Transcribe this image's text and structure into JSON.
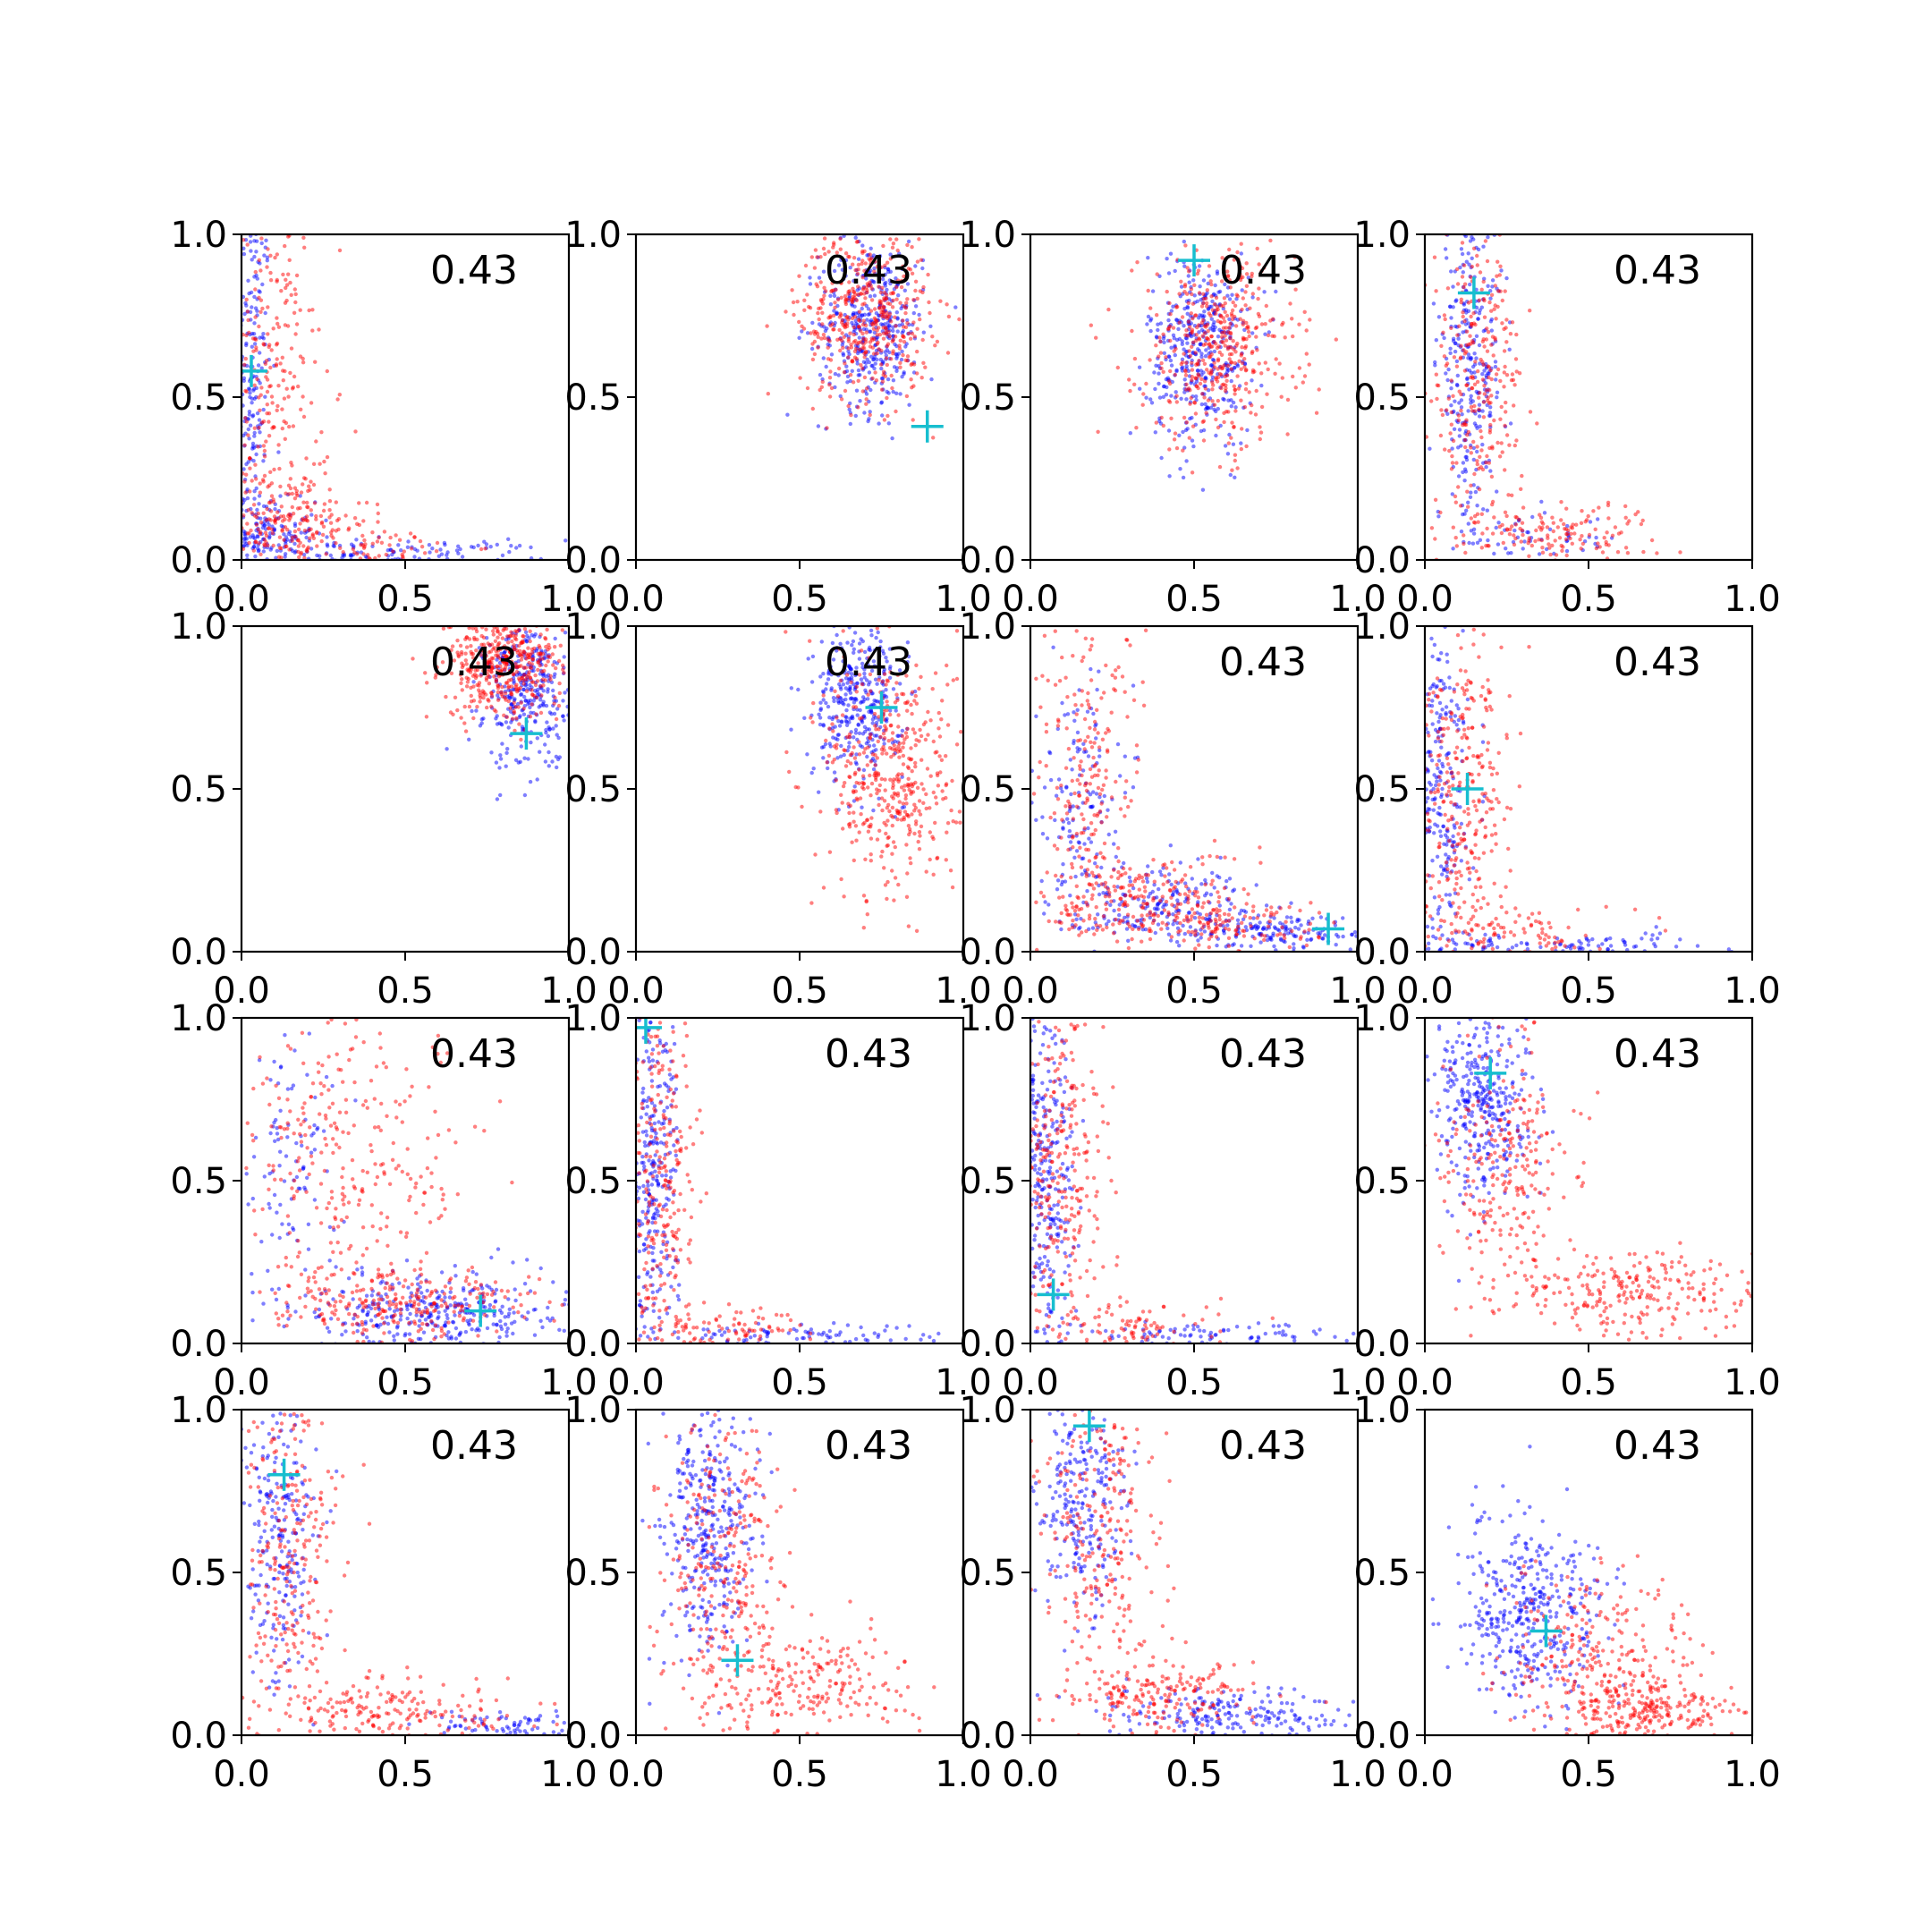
{
  "figure": {
    "rows": 4,
    "cols": 4,
    "colors": {
      "series_a": "#0000ff",
      "series_b": "#ff0000",
      "marker": "#17becf",
      "axis": "#000000"
    }
  },
  "chart_data": [
    {
      "type": "scatter",
      "annotation": "0.43",
      "xlim": [
        0,
        1
      ],
      "ylim": [
        0,
        1
      ],
      "xticks": [
        "0.0",
        "0.5",
        "1.0"
      ],
      "yticks": [
        "0.0",
        "0.5",
        "1.0"
      ],
      "marker": [
        0.03,
        0.58
      ],
      "series": [
        {
          "color": "#0000ff",
          "clusters": [
            [
              0.03,
              0.55,
              0.03,
              0.3,
              200
            ],
            [
              0.07,
              0.08,
              0.08,
              0.05,
              150
            ],
            [
              0.45,
              0.02,
              0.25,
              0.02,
              120
            ]
          ]
        },
        {
          "color": "#ff0000",
          "clusters": [
            [
              0.09,
              0.55,
              0.07,
              0.3,
              250
            ],
            [
              0.15,
              0.12,
              0.12,
              0.08,
              200
            ],
            [
              0.4,
              0.04,
              0.15,
              0.03,
              60
            ]
          ]
        }
      ]
    },
    {
      "type": "scatter",
      "annotation": "0.43",
      "xlim": [
        0,
        1
      ],
      "ylim": [
        0,
        1
      ],
      "xticks": [
        "0.0",
        "0.5",
        "1.0"
      ],
      "yticks": [
        "0.0",
        "0.5",
        "1.0"
      ],
      "marker": [
        0.89,
        0.41
      ],
      "series": [
        {
          "color": "#0000ff",
          "clusters": [
            [
              0.72,
              0.72,
              0.08,
              0.13,
              400
            ]
          ]
        },
        {
          "color": "#ff0000",
          "clusters": [
            [
              0.7,
              0.75,
              0.1,
              0.13,
              450
            ]
          ]
        }
      ]
    },
    {
      "type": "scatter",
      "annotation": "0.43",
      "xlim": [
        0,
        1
      ],
      "ylim": [
        0,
        1
      ],
      "xticks": [
        "0.0",
        "0.5",
        "1.0"
      ],
      "yticks": [
        "0.0",
        "0.5",
        "1.0"
      ],
      "marker": [
        0.5,
        0.92
      ],
      "series": [
        {
          "color": "#0000ff",
          "clusters": [
            [
              0.52,
              0.65,
              0.08,
              0.15,
              400
            ]
          ]
        },
        {
          "color": "#ff0000",
          "clusters": [
            [
              0.57,
              0.65,
              0.12,
              0.15,
              450
            ]
          ]
        }
      ]
    },
    {
      "type": "scatter",
      "annotation": "0.43",
      "xlim": [
        0,
        1
      ],
      "ylim": [
        0,
        1
      ],
      "xticks": [
        "0.0",
        "0.5",
        "1.0"
      ],
      "yticks": [
        "0.0",
        "0.5",
        "1.0"
      ],
      "marker": [
        0.15,
        0.82
      ],
      "series": [
        {
          "color": "#0000ff",
          "clusters": [
            [
              0.14,
              0.6,
              0.05,
              0.25,
              300
            ],
            [
              0.3,
              0.06,
              0.15,
              0.04,
              60
            ]
          ]
        },
        {
          "color": "#ff0000",
          "clusters": [
            [
              0.16,
              0.55,
              0.07,
              0.25,
              300
            ],
            [
              0.4,
              0.08,
              0.15,
              0.05,
              150
            ]
          ]
        }
      ]
    },
    {
      "type": "scatter",
      "annotation": "0.43",
      "xlim": [
        0,
        1
      ],
      "ylim": [
        0,
        1
      ],
      "xticks": [
        "0.0",
        "0.5",
        "1.0"
      ],
      "yticks": [
        "0.0",
        "0.5",
        "1.0"
      ],
      "marker": [
        0.87,
        0.67
      ],
      "series": [
        {
          "color": "#0000ff",
          "clusters": [
            [
              0.88,
              0.8,
              0.07,
              0.12,
              350
            ]
          ]
        },
        {
          "color": "#ff0000",
          "clusters": [
            [
              0.8,
              0.88,
              0.09,
              0.08,
              450
            ]
          ]
        }
      ]
    },
    {
      "type": "scatter",
      "annotation": "0.43",
      "xlim": [
        0,
        1
      ],
      "ylim": [
        0,
        1
      ],
      "xticks": [
        "0.0",
        "0.5",
        "1.0"
      ],
      "yticks": [
        "0.0",
        "0.5",
        "1.0"
      ],
      "marker": [
        0.75,
        0.75
      ],
      "series": [
        {
          "color": "#0000ff",
          "clusters": [
            [
              0.68,
              0.77,
              0.07,
              0.12,
              350
            ]
          ]
        },
        {
          "color": "#ff0000",
          "clusters": [
            [
              0.78,
              0.55,
              0.1,
              0.2,
              450
            ]
          ]
        }
      ]
    },
    {
      "type": "scatter",
      "annotation": "0.43",
      "xlim": [
        0,
        1
      ],
      "ylim": [
        0,
        1
      ],
      "xticks": [
        "0.0",
        "0.5",
        "1.0"
      ],
      "yticks": [
        "0.0",
        "0.5",
        "1.0"
      ],
      "marker": [
        0.91,
        0.07
      ],
      "series": [
        {
          "color": "#0000ff",
          "clusters": [
            [
              0.15,
              0.45,
              0.06,
              0.2,
              150
            ],
            [
              0.4,
              0.15,
              0.15,
              0.06,
              200
            ],
            [
              0.75,
              0.06,
              0.15,
              0.03,
              150
            ]
          ]
        },
        {
          "color": "#ff0000",
          "clusters": [
            [
              0.18,
              0.55,
              0.08,
              0.25,
              200
            ],
            [
              0.35,
              0.15,
              0.15,
              0.08,
              250
            ],
            [
              0.65,
              0.08,
              0.15,
              0.04,
              100
            ]
          ]
        }
      ]
    },
    {
      "type": "scatter",
      "annotation": "0.43",
      "xlim": [
        0,
        1
      ],
      "ylim": [
        0,
        1
      ],
      "xticks": [
        "0.0",
        "0.5",
        "1.0"
      ],
      "yticks": [
        "0.0",
        "0.5",
        "1.0"
      ],
      "marker": [
        0.13,
        0.5
      ],
      "series": [
        {
          "color": "#0000ff",
          "clusters": [
            [
              0.05,
              0.5,
              0.04,
              0.28,
              250
            ],
            [
              0.4,
              0.02,
              0.25,
              0.02,
              120
            ]
          ]
        },
        {
          "color": "#ff0000",
          "clusters": [
            [
              0.12,
              0.45,
              0.07,
              0.25,
              300
            ],
            [
              0.25,
              0.06,
              0.15,
              0.04,
              100
            ]
          ]
        }
      ]
    },
    {
      "type": "scatter",
      "annotation": "0.43",
      "xlim": [
        0,
        1
      ],
      "ylim": [
        0,
        1
      ],
      "xticks": [
        "0.0",
        "0.5",
        "1.0"
      ],
      "yticks": [
        "0.0",
        "0.5",
        "1.0"
      ],
      "marker": [
        0.73,
        0.1
      ],
      "series": [
        {
          "color": "#0000ff",
          "clusters": [
            [
              0.15,
              0.6,
              0.07,
              0.25,
              100
            ],
            [
              0.6,
              0.1,
              0.2,
              0.06,
              350
            ]
          ]
        },
        {
          "color": "#ff0000",
          "clusters": [
            [
              0.35,
              0.55,
              0.18,
              0.25,
              300
            ],
            [
              0.5,
              0.12,
              0.2,
              0.06,
              250
            ]
          ]
        }
      ]
    },
    {
      "type": "scatter",
      "annotation": "0.43",
      "xlim": [
        0,
        1
      ],
      "ylim": [
        0,
        1
      ],
      "xticks": [
        "0.0",
        "0.5",
        "1.0"
      ],
      "yticks": [
        "0.0",
        "0.5",
        "1.0"
      ],
      "marker": [
        0.03,
        0.97
      ],
      "series": [
        {
          "color": "#0000ff",
          "clusters": [
            [
              0.05,
              0.5,
              0.04,
              0.3,
              300
            ],
            [
              0.5,
              0.02,
              0.25,
              0.02,
              100
            ]
          ]
        },
        {
          "color": "#ff0000",
          "clusters": [
            [
              0.08,
              0.45,
              0.06,
              0.3,
              300
            ],
            [
              0.25,
              0.05,
              0.15,
              0.04,
              100
            ]
          ]
        }
      ]
    },
    {
      "type": "scatter",
      "annotation": "0.43",
      "xlim": [
        0,
        1
      ],
      "ylim": [
        0,
        1
      ],
      "xticks": [
        "0.0",
        "0.5",
        "1.0"
      ],
      "yticks": [
        "0.0",
        "0.5",
        "1.0"
      ],
      "marker": [
        0.07,
        0.15
      ],
      "series": [
        {
          "color": "#0000ff",
          "clusters": [
            [
              0.05,
              0.55,
              0.04,
              0.3,
              300
            ],
            [
              0.5,
              0.02,
              0.25,
              0.02,
              100
            ]
          ]
        },
        {
          "color": "#ff0000",
          "clusters": [
            [
              0.09,
              0.55,
              0.07,
              0.3,
              300
            ],
            [
              0.3,
              0.05,
              0.15,
              0.04,
              100
            ]
          ]
        }
      ]
    },
    {
      "type": "scatter",
      "annotation": "0.43",
      "xlim": [
        0,
        1
      ],
      "ylim": [
        0,
        1
      ],
      "xticks": [
        "0.0",
        "0.5",
        "1.0"
      ],
      "yticks": [
        "0.0",
        "0.5",
        "1.0"
      ],
      "marker": [
        0.2,
        0.83
      ],
      "series": [
        {
          "color": "#0000ff",
          "clusters": [
            [
              0.18,
              0.75,
              0.07,
              0.15,
              350
            ]
          ]
        },
        {
          "color": "#ff0000",
          "clusters": [
            [
              0.25,
              0.55,
              0.1,
              0.2,
              250
            ],
            [
              0.65,
              0.15,
              0.2,
              0.07,
              250
            ]
          ]
        }
      ]
    },
    {
      "type": "scatter",
      "annotation": "0.43",
      "xlim": [
        0,
        1
      ],
      "ylim": [
        0,
        1
      ],
      "xticks": [
        "0.0",
        "0.5",
        "1.0"
      ],
      "yticks": [
        "0.0",
        "0.5",
        "1.0"
      ],
      "marker": [
        0.13,
        0.8
      ],
      "series": [
        {
          "color": "#0000ff",
          "clusters": [
            [
              0.12,
              0.65,
              0.06,
              0.25,
              250
            ],
            [
              0.8,
              0.03,
              0.12,
              0.02,
              80
            ]
          ]
        },
        {
          "color": "#ff0000",
          "clusters": [
            [
              0.15,
              0.55,
              0.08,
              0.25,
              250
            ],
            [
              0.45,
              0.07,
              0.2,
              0.05,
              200
            ]
          ]
        }
      ]
    },
    {
      "type": "scatter",
      "annotation": "0.43",
      "xlim": [
        0,
        1
      ],
      "ylim": [
        0,
        1
      ],
      "xticks": [
        "0.0",
        "0.5",
        "1.0"
      ],
      "yticks": [
        "0.0",
        "0.5",
        "1.0"
      ],
      "marker": [
        0.31,
        0.23
      ],
      "series": [
        {
          "color": "#0000ff",
          "clusters": [
            [
              0.22,
              0.65,
              0.07,
              0.2,
              350
            ]
          ]
        },
        {
          "color": "#ff0000",
          "clusters": [
            [
              0.28,
              0.5,
              0.09,
              0.25,
              300
            ],
            [
              0.55,
              0.15,
              0.15,
              0.08,
              200
            ]
          ]
        }
      ]
    },
    {
      "type": "scatter",
      "annotation": "0.43",
      "xlim": [
        0,
        1
      ],
      "ylim": [
        0,
        1
      ],
      "xticks": [
        "0.0",
        "0.5",
        "1.0"
      ],
      "yticks": [
        "0.0",
        "0.5",
        "1.0"
      ],
      "marker": [
        0.18,
        0.95
      ],
      "series": [
        {
          "color": "#0000ff",
          "clusters": [
            [
              0.15,
              0.7,
              0.07,
              0.2,
              250
            ],
            [
              0.6,
              0.06,
              0.2,
              0.04,
              200
            ]
          ]
        },
        {
          "color": "#ff0000",
          "clusters": [
            [
              0.22,
              0.6,
              0.09,
              0.25,
              250
            ],
            [
              0.4,
              0.12,
              0.15,
              0.06,
              200
            ]
          ]
        }
      ]
    },
    {
      "type": "scatter",
      "annotation": "0.43",
      "xlim": [
        0,
        1
      ],
      "ylim": [
        0,
        1
      ],
      "xticks": [
        "0.0",
        "0.5",
        "1.0"
      ],
      "yticks": [
        "0.0",
        "0.5",
        "1.0"
      ],
      "marker": [
        0.37,
        0.32
      ],
      "series": [
        {
          "color": "#0000ff",
          "clusters": [
            [
              0.32,
              0.38,
              0.12,
              0.15,
              400
            ]
          ]
        },
        {
          "color": "#ff0000",
          "clusters": [
            [
              0.55,
              0.2,
              0.15,
              0.15,
              300
            ],
            [
              0.7,
              0.08,
              0.12,
              0.05,
              200
            ]
          ]
        }
      ]
    }
  ]
}
